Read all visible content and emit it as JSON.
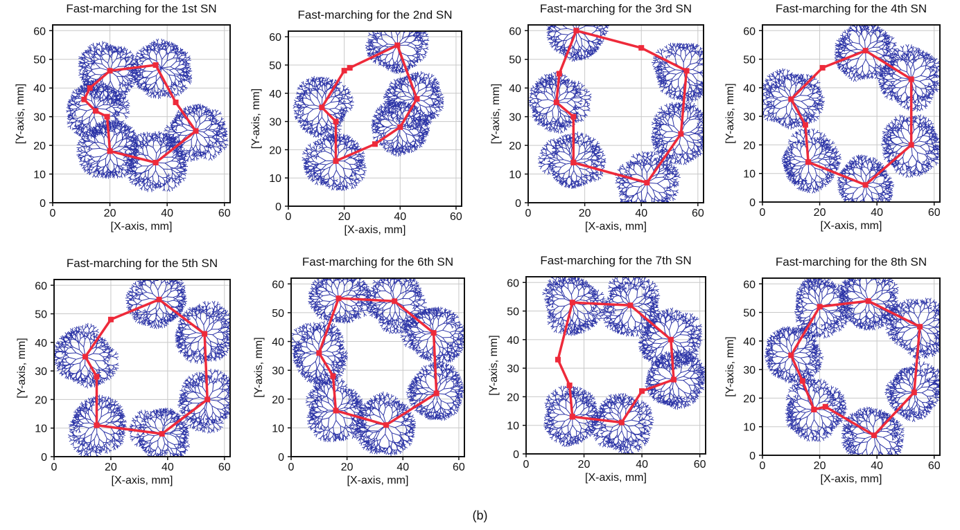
{
  "figure": {
    "caption": "(b)",
    "colors": {
      "tree": "#2b33a6",
      "path": "#ee2a3a",
      "frame": "#111111",
      "grid": "#c8c8c8",
      "text": "#111111"
    }
  },
  "chart_data": [
    {
      "type": "line",
      "title": "Fast-marching for the 1st SN",
      "xlabel": "[X-axis, mm]",
      "ylabel": "[Y-axis, mm]",
      "xlim": [
        0,
        62
      ],
      "ylim": [
        0,
        62
      ],
      "xticks": [
        0,
        20,
        40,
        60
      ],
      "yticks": [
        0,
        10,
        20,
        30,
        40,
        50,
        60
      ],
      "tree_roots": [
        [
          20,
          18
        ],
        [
          15,
          33
        ],
        [
          38,
          47
        ],
        [
          50,
          25
        ],
        [
          36,
          14
        ],
        [
          20,
          46
        ]
      ],
      "series": [
        {
          "name": "path",
          "x": [
            20,
            36,
            50,
            43,
            36,
            20,
            13,
            11,
            15,
            19,
            20
          ],
          "y": [
            18,
            14,
            25,
            35,
            48,
            46,
            40,
            36,
            32,
            30,
            18
          ]
        }
      ]
    },
    {
      "type": "line",
      "title": "Fast-marching for the 2nd SN",
      "xlabel": "[X-axis, mm]",
      "ylabel": "[Y-axis, mm]",
      "xlim": [
        0,
        62
      ],
      "ylim": [
        0,
        62
      ],
      "xticks": [
        0,
        20,
        40,
        60
      ],
      "yticks": [
        0,
        10,
        20,
        30,
        40,
        50,
        60
      ],
      "tree_roots": [
        [
          17,
          16
        ],
        [
          40,
          28
        ],
        [
          45,
          38
        ],
        [
          39,
          57
        ],
        [
          12,
          35
        ]
      ],
      "series": [
        {
          "name": "path",
          "x": [
            17,
            31,
            40,
            46,
            39,
            22,
            20,
            12,
            17,
            17
          ],
          "y": [
            16,
            22,
            28,
            38,
            57,
            49,
            48,
            35,
            30,
            16
          ]
        }
      ]
    },
    {
      "type": "line",
      "title": "Fast-marching for the 3rd SN",
      "xlabel": "[X-axis, mm]",
      "ylabel": "[Y-axis, mm]",
      "xlim": [
        0,
        62
      ],
      "ylim": [
        0,
        62
      ],
      "xticks": [
        0,
        20,
        40,
        60
      ],
      "yticks": [
        0,
        10,
        20,
        30,
        40,
        50,
        60
      ],
      "tree_roots": [
        [
          16,
          14
        ],
        [
          42,
          7
        ],
        [
          54,
          24
        ],
        [
          55,
          46
        ],
        [
          17,
          60
        ],
        [
          10,
          35
        ]
      ],
      "series": [
        {
          "name": "path",
          "x": [
            16,
            42,
            54,
            56,
            40,
            17,
            11,
            10,
            16,
            16
          ],
          "y": [
            14,
            7,
            24,
            46,
            54,
            60,
            45,
            35,
            30,
            14
          ]
        }
      ]
    },
    {
      "type": "line",
      "title": "Fast-marching for the 4th SN",
      "xlabel": "[X-axis, mm]",
      "ylabel": "[Y-axis, mm]",
      "xlim": [
        0,
        62
      ],
      "ylim": [
        0,
        62
      ],
      "xticks": [
        0,
        20,
        40,
        60
      ],
      "yticks": [
        0,
        10,
        20,
        30,
        40,
        50,
        60
      ],
      "tree_roots": [
        [
          16,
          14
        ],
        [
          36,
          6
        ],
        [
          52,
          20
        ],
        [
          52,
          43
        ],
        [
          36,
          53
        ],
        [
          10,
          36
        ]
      ],
      "series": [
        {
          "name": "path",
          "x": [
            16,
            36,
            52,
            52,
            36,
            21,
            10,
            15,
            16
          ],
          "y": [
            14,
            6,
            20,
            43,
            53,
            47,
            36,
            27,
            14
          ]
        }
      ]
    },
    {
      "type": "line",
      "title": "Fast-marching for the 5th SN",
      "xlabel": "[X-axis, mm]",
      "ylabel": "[Y-axis, mm]",
      "xlim": [
        0,
        62
      ],
      "ylim": [
        0,
        62
      ],
      "xticks": [
        0,
        20,
        40,
        60
      ],
      "yticks": [
        0,
        10,
        20,
        30,
        40,
        50,
        60
      ],
      "tree_roots": [
        [
          15,
          11
        ],
        [
          38,
          8
        ],
        [
          54,
          20
        ],
        [
          53,
          43
        ],
        [
          37,
          55
        ],
        [
          11,
          35
        ]
      ],
      "series": [
        {
          "name": "path",
          "x": [
            15,
            38,
            54,
            53,
            37,
            20,
            11,
            15,
            15
          ],
          "y": [
            11,
            8,
            20,
            43,
            55,
            48,
            35,
            28,
            11
          ]
        }
      ]
    },
    {
      "type": "line",
      "title": "Fast-marching for the 6th SN",
      "xlabel": "[X-axis, mm]",
      "ylabel": "[Y-axis, mm]",
      "xlim": [
        0,
        62
      ],
      "ylim": [
        0,
        62
      ],
      "xticks": [
        0,
        20,
        40,
        60
      ],
      "yticks": [
        0,
        10,
        20,
        30,
        40,
        50,
        60
      ],
      "tree_roots": [
        [
          16,
          16
        ],
        [
          34,
          11
        ],
        [
          52,
          22
        ],
        [
          51,
          43
        ],
        [
          37,
          54
        ],
        [
          17,
          55
        ],
        [
          10,
          36
        ]
      ],
      "series": [
        {
          "name": "path",
          "x": [
            16,
            34,
            52,
            51,
            37,
            17,
            10,
            15,
            16
          ],
          "y": [
            16,
            11,
            22,
            43,
            54,
            55,
            36,
            28,
            16
          ]
        }
      ]
    },
    {
      "type": "line",
      "title": "Fast-marching for the 7th SN",
      "xlabel": "[X-axis, mm]",
      "ylabel": "[Y-axis, mm]",
      "xlim": [
        0,
        62
      ],
      "ylim": [
        0,
        62
      ],
      "xticks": [
        0,
        20,
        40,
        60
      ],
      "yticks": [
        0,
        10,
        20,
        30,
        40,
        50,
        60
      ],
      "tree_roots": [
        [
          16,
          13
        ],
        [
          33,
          11
        ],
        [
          51,
          26
        ],
        [
          50,
          40
        ],
        [
          36,
          52
        ],
        [
          16,
          53
        ]
      ],
      "series": [
        {
          "name": "path",
          "x": [
            16,
            33,
            40,
            51,
            50,
            36,
            16,
            11,
            15,
            16
          ],
          "y": [
            13,
            11,
            22,
            26,
            40,
            52,
            53,
            33,
            24,
            13
          ]
        }
      ]
    },
    {
      "type": "line",
      "title": "Fast-marching for the 8th SN",
      "xlabel": "[X-axis, mm]",
      "ylabel": "[Y-axis, mm]",
      "xlim": [
        0,
        62
      ],
      "ylim": [
        0,
        62
      ],
      "xticks": [
        0,
        20,
        40,
        60
      ],
      "yticks": [
        0,
        10,
        20,
        30,
        40,
        50,
        60
      ],
      "tree_roots": [
        [
          18,
          16
        ],
        [
          39,
          7
        ],
        [
          53,
          22
        ],
        [
          55,
          45
        ],
        [
          37,
          54
        ],
        [
          20,
          52
        ],
        [
          10,
          35
        ]
      ],
      "series": [
        {
          "name": "path",
          "x": [
            18,
            22,
            39,
            53,
            55,
            37,
            20,
            10,
            14,
            18
          ],
          "y": [
            16,
            17,
            7,
            22,
            45,
            54,
            52,
            35,
            26,
            16
          ]
        }
      ]
    }
  ]
}
